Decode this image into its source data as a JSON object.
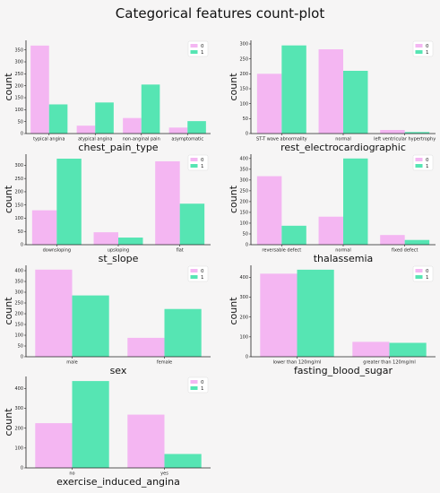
{
  "figure": {
    "title": "Categorical features count-plot"
  },
  "colors": {
    "series_0": "#f4b6f2",
    "series_1": "#56e5b3",
    "background": "#f6f5f5"
  },
  "chart_data": [
    {
      "type": "bar",
      "xlabel": "chest_pain_type",
      "ylabel": "count",
      "categories": [
        "typical angina",
        "atypical angina",
        "non-anginal pain",
        "asymptomatic"
      ],
      "series": [
        {
          "name": "0",
          "values": [
            368,
            33,
            65,
            25
          ]
        },
        {
          "name": "1",
          "values": [
            122,
            130,
            205,
            52
          ]
        }
      ],
      "ylim": [
        0,
        390
      ],
      "yticks": [
        0,
        50,
        100,
        150,
        200,
        250,
        300,
        350
      ],
      "legend": "top-right"
    },
    {
      "type": "bar",
      "xlabel": "rest_electrocardiographic",
      "ylabel": "count",
      "categories": [
        "ST-T wave abnormality",
        "normal",
        "left ventricular hypertrophy"
      ],
      "series": [
        {
          "name": "0",
          "values": [
            200,
            282,
            12
          ]
        },
        {
          "name": "1",
          "values": [
            295,
            210,
            5
          ]
        }
      ],
      "ylim": [
        0,
        312
      ],
      "yticks": [
        0,
        50,
        100,
        150,
        200,
        250,
        300
      ],
      "legend": "top-right"
    },
    {
      "type": "bar",
      "xlabel": "st_slope",
      "ylabel": "count",
      "categories": [
        "downsloping",
        "upsloping",
        "flat"
      ],
      "series": [
        {
          "name": "0",
          "values": [
            130,
            47,
            315
          ]
        },
        {
          "name": "1",
          "values": [
            325,
            27,
            155
          ]
        }
      ],
      "ylim": [
        0,
        342
      ],
      "yticks": [
        0,
        50,
        100,
        150,
        200,
        250,
        300
      ],
      "legend": "top-right"
    },
    {
      "type": "bar",
      "xlabel": "thalassemia",
      "ylabel": "count",
      "categories": [
        "reversable defect",
        "normal",
        "fixed defect"
      ],
      "series": [
        {
          "name": "0",
          "values": [
            318,
            130,
            45
          ]
        },
        {
          "name": "1",
          "values": [
            88,
            400,
            22
          ]
        }
      ],
      "ylim": [
        0,
        420
      ],
      "yticks": [
        0,
        50,
        100,
        150,
        200,
        250,
        300,
        350,
        400
      ],
      "legend": "top-right"
    },
    {
      "type": "bar",
      "xlabel": "sex",
      "ylabel": "count",
      "categories": [
        "male",
        "female"
      ],
      "series": [
        {
          "name": "0",
          "values": [
            405,
            88
          ]
        },
        {
          "name": "1",
          "values": [
            285,
            222
          ]
        }
      ],
      "ylim": [
        0,
        425
      ],
      "yticks": [
        0,
        50,
        100,
        150,
        200,
        250,
        300,
        350,
        400
      ],
      "legend": "top-right"
    },
    {
      "type": "bar",
      "xlabel": "fasting_blood_sugar",
      "ylabel": "count",
      "categories": [
        "lower than 120mg/ml",
        "greater than 120mg/ml"
      ],
      "series": [
        {
          "name": "0",
          "values": [
            418,
            75
          ]
        },
        {
          "name": "1",
          "values": [
            438,
            70
          ]
        }
      ],
      "ylim": [
        0,
        460
      ],
      "yticks": [
        0,
        100,
        200,
        300,
        400
      ],
      "legend": "top-right"
    },
    {
      "type": "bar",
      "xlabel": "exercise_induced_angina",
      "ylabel": "count",
      "categories": [
        "no",
        "yes"
      ],
      "series": [
        {
          "name": "0",
          "values": [
            225,
            268
          ]
        },
        {
          "name": "1",
          "values": [
            437,
            70
          ]
        }
      ],
      "ylim": [
        0,
        460
      ],
      "yticks": [
        0,
        100,
        200,
        300,
        400
      ],
      "legend": "top-right"
    }
  ]
}
